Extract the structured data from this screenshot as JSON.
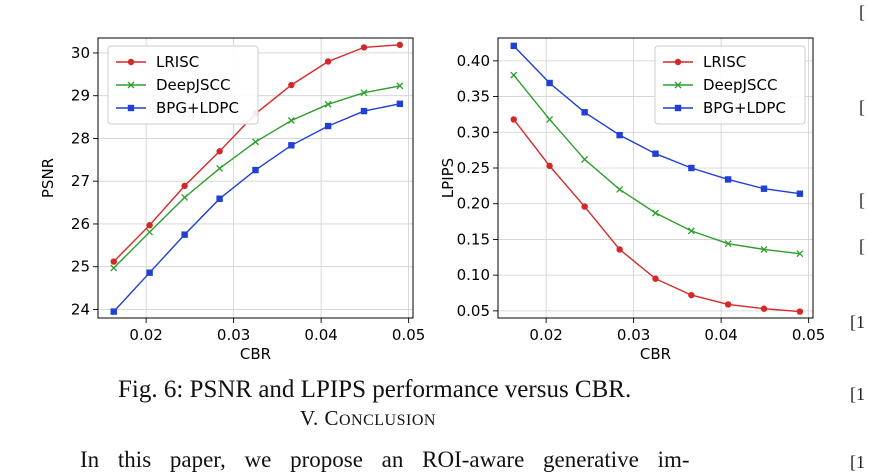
{
  "figure": {
    "caption": "Fig. 6: PSNR and LPIPS performance versus CBR.",
    "section_number": "V.",
    "section_title_first": "C",
    "section_title_rest": "ONCLUSION",
    "body_text": "In this paper, we propose an ROI-aware generative im-"
  },
  "margin_refs": [
    "[",
    "[",
    "[",
    "[",
    "[1",
    "[1",
    "[1"
  ],
  "colors": {
    "LRISC": "#d62728",
    "DeepJSCC": "#2ca02c",
    "BPG+LDPC": "#1f3fd6"
  },
  "chart_data": [
    {
      "type": "line",
      "xlabel": "CBR",
      "ylabel": "PSNR",
      "xlim": [
        0.0145,
        0.0505
      ],
      "ylim": [
        23.8,
        30.35
      ],
      "xticks": [
        0.02,
        0.03,
        0.04,
        0.05
      ],
      "xtick_labels": [
        "0.02",
        "0.03",
        "0.04",
        "0.05"
      ],
      "yticks": [
        24,
        25,
        26,
        27,
        28,
        29,
        30
      ],
      "ytick_labels": [
        "24",
        "25",
        "26",
        "27",
        "28",
        "29",
        "30"
      ],
      "grid": true,
      "legend": "top-left",
      "x": [
        0.0163,
        0.0204,
        0.0244,
        0.0284,
        0.0325,
        0.0366,
        0.0408,
        0.0449,
        0.049
      ],
      "series": [
        {
          "name": "LRISC",
          "marker": "circle",
          "values": [
            25.12,
            25.97,
            26.89,
            27.7,
            28.58,
            29.25,
            29.8,
            30.13,
            30.19
          ]
        },
        {
          "name": "DeepJSCC",
          "marker": "x",
          "values": [
            24.97,
            25.81,
            26.62,
            27.3,
            27.92,
            28.42,
            28.8,
            29.07,
            29.23
          ]
        },
        {
          "name": "BPG+LDPC",
          "marker": "square",
          "values": [
            23.95,
            24.86,
            25.75,
            26.59,
            27.26,
            27.84,
            28.29,
            28.64,
            28.81
          ]
        }
      ]
    },
    {
      "type": "line",
      "xlabel": "CBR",
      "ylabel": "LPIPS",
      "xlim": [
        0.0145,
        0.0505
      ],
      "ylim": [
        0.04,
        0.432
      ],
      "xticks": [
        0.02,
        0.03,
        0.04,
        0.05
      ],
      "xtick_labels": [
        "0.02",
        "0.03",
        "0.04",
        "0.05"
      ],
      "yticks": [
        0.05,
        0.1,
        0.15,
        0.2,
        0.25,
        0.3,
        0.35,
        0.4
      ],
      "ytick_labels": [
        "0.05",
        "0.10",
        "0.15",
        "0.20",
        "0.25",
        "0.30",
        "0.35",
        "0.40"
      ],
      "grid": true,
      "legend": "top-right",
      "x": [
        0.0163,
        0.0204,
        0.0244,
        0.0284,
        0.0325,
        0.0366,
        0.0408,
        0.0449,
        0.049
      ],
      "series": [
        {
          "name": "LRISC",
          "marker": "circle",
          "values": [
            0.318,
            0.253,
            0.196,
            0.136,
            0.095,
            0.072,
            0.059,
            0.053,
            0.049
          ]
        },
        {
          "name": "DeepJSCC",
          "marker": "x",
          "values": [
            0.38,
            0.318,
            0.262,
            0.22,
            0.187,
            0.162,
            0.144,
            0.136,
            0.13
          ]
        },
        {
          "name": "BPG+LDPC",
          "marker": "square",
          "values": [
            0.421,
            0.369,
            0.328,
            0.296,
            0.27,
            0.25,
            0.234,
            0.221,
            0.214
          ]
        }
      ]
    }
  ]
}
